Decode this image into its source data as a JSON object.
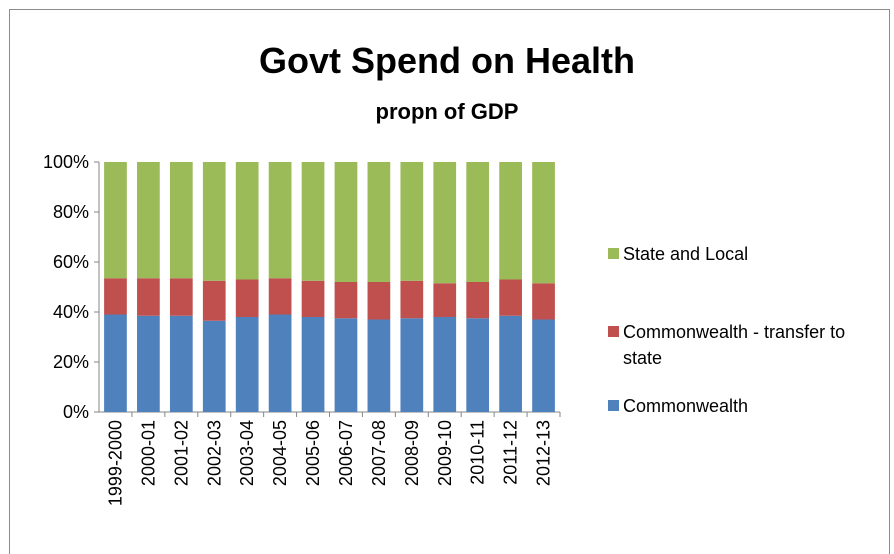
{
  "chart_data": {
    "type": "bar",
    "stacked": true,
    "percent_stacked": true,
    "title": "Govt Spend on Health",
    "subtitle": "propn of GDP",
    "categories": [
      "1999-2000",
      "2000-01",
      "2001-02",
      "2002-03",
      "2003-04",
      "2004-05",
      "2005-06",
      "2006-07",
      "2007-08",
      "2008-09",
      "2009-10",
      "2010-11",
      "2011-12",
      "2012-13"
    ],
    "series": [
      {
        "name": "Commonwealth",
        "color": "#4f81bd",
        "values": [
          39,
          38.5,
          38.5,
          36.5,
          38,
          39,
          38,
          37.5,
          37,
          37.5,
          38,
          37.5,
          38.5,
          37
        ]
      },
      {
        "name": "Commonwealth - transfer to state",
        "color": "#c0504d",
        "values": [
          14.5,
          15,
          15,
          16,
          15,
          14.5,
          14.5,
          14.5,
          15,
          15,
          13.5,
          14.5,
          14.5,
          14.5
        ]
      },
      {
        "name": "State and Local",
        "color": "#9bbb59",
        "values": [
          46.5,
          46.5,
          46.5,
          47.5,
          47,
          46.5,
          47.5,
          48,
          48,
          47.5,
          48.5,
          48,
          47,
          48.5
        ]
      }
    ],
    "yticks": [
      "0%",
      "20%",
      "40%",
      "60%",
      "80%",
      "100%"
    ],
    "ylim": [
      0,
      100
    ],
    "grid": false,
    "legend_position": "right"
  }
}
